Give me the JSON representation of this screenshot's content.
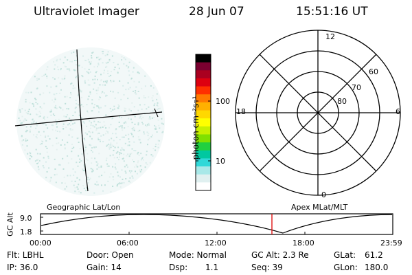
{
  "header": {
    "instrument": "Ultraviolet Imager",
    "date": "28 Jun 07",
    "time": "15:51:16 UT"
  },
  "colorbar": {
    "label": "photon cm⁻²s⁻¹",
    "tick_100": "100",
    "tick_10": "10",
    "colors": [
      "#000000",
      "#7a0030",
      "#aa0020",
      "#dd0010",
      "#ff3000",
      "#ff7a00",
      "#ffb000",
      "#ffd800",
      "#ffff00",
      "#c8f000",
      "#80e000",
      "#20d040",
      "#00c8a0",
      "#30d8d8",
      "#a8e8e8",
      "#e0f0f0",
      "#ffffff"
    ]
  },
  "polar": {
    "mlt_labels": {
      "top": "12",
      "left": "18",
      "right": "6",
      "bottom": "0"
    },
    "lat_labels": [
      "60",
      "70",
      "80"
    ]
  },
  "timeline": {
    "ylabel": "GC Alt",
    "ytick_top": "9.0",
    "ytick_bottom": "1.8",
    "left_title": "Geographic Lat/Lon",
    "right_title": "Apex MLat/MLT",
    "time_ticks": [
      "00:00",
      "06:00",
      "12:00",
      "18:00",
      "23:59"
    ],
    "marker_color": "#dd0000"
  },
  "info": {
    "filter": "Flt: LBHL",
    "ip": "IP: 36.0",
    "door": "Door: Open",
    "gain": "Gain: 14",
    "mode": "Mode: Normal",
    "dsp_label": "Dsp:",
    "dsp_value": "1.1",
    "gc_alt": "GC Alt: 2.3 Re",
    "seq": "Seq: 39",
    "glat_label": "GLat:",
    "glat_value": "61.2",
    "glon_label": "GLon:",
    "glon_value": "180.0"
  }
}
